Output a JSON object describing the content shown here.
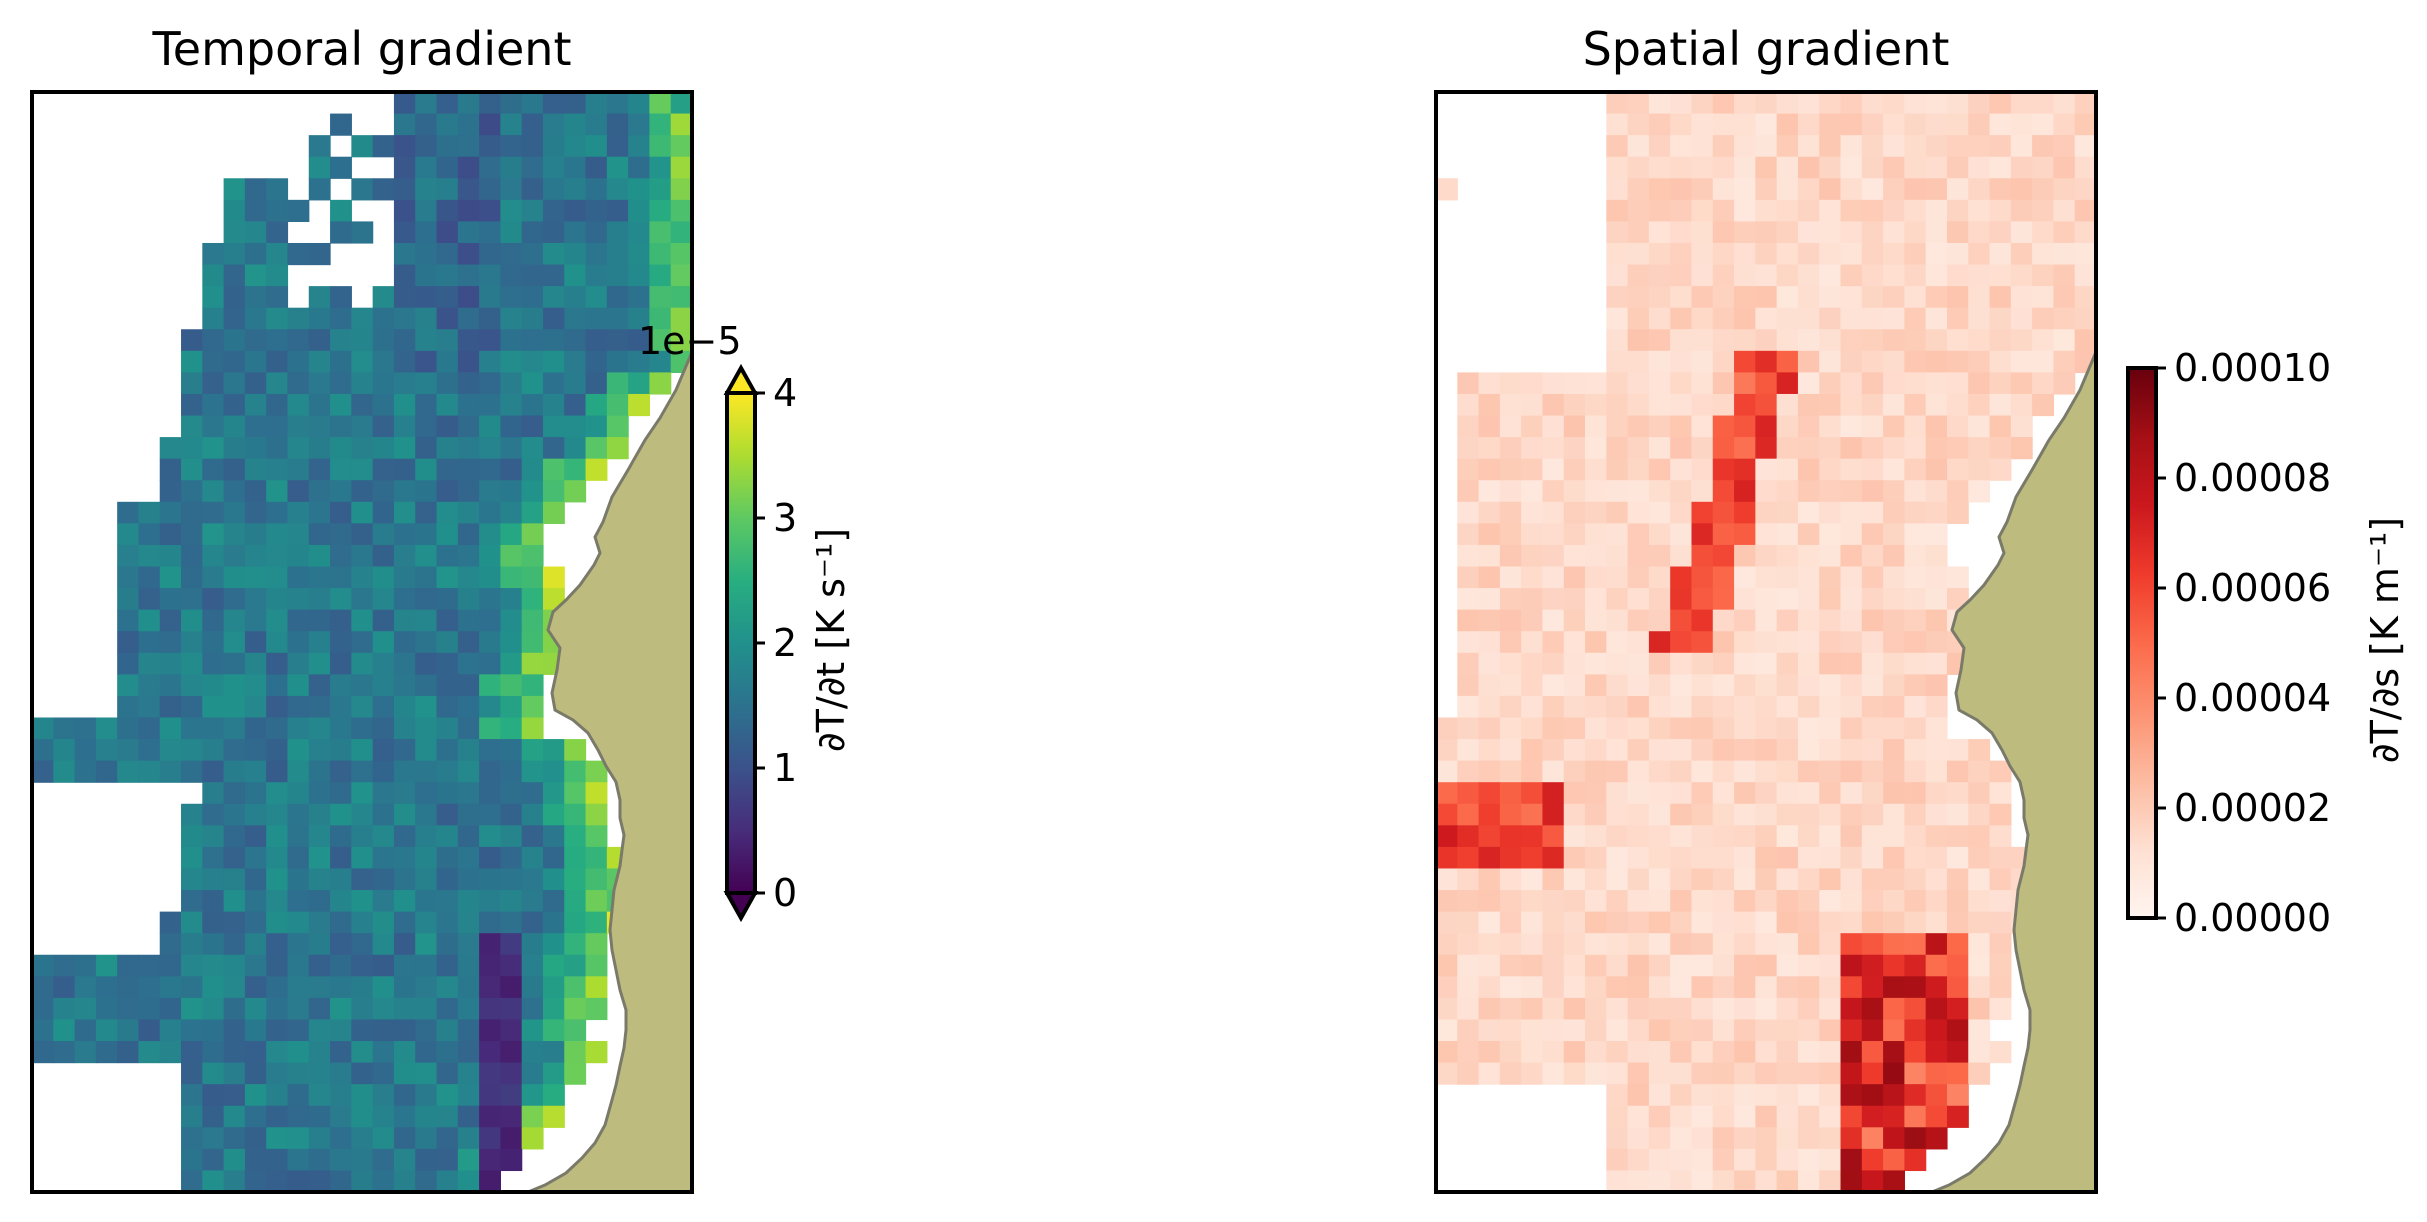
{
  "chart_data": [
    {
      "type": "heatmap",
      "title": "Temporal gradient",
      "colormap": "viridis",
      "colorbar": {
        "label": "∂T/∂t [K s⁻¹]",
        "offset_text": "1e−5",
        "ticks": [
          "0",
          "1",
          "2",
          "3",
          "4"
        ],
        "range": [
          0,
          4
        ],
        "extend": "both"
      },
      "land_color": "#bdbb7e",
      "axes_ticks": false
    },
    {
      "type": "heatmap",
      "title": "Spatial gradient",
      "colormap": "Reds",
      "colorbar": {
        "label": "∂T/∂s [K m⁻¹]",
        "ticks": [
          "0.00000",
          "0.00002",
          "0.00004",
          "0.00006",
          "0.00008",
          "0.00010"
        ],
        "range": [
          0,
          0.0001
        ],
        "extend": "neither"
      },
      "land_color": "#bdbb7e",
      "axes_ticks": false
    }
  ]
}
